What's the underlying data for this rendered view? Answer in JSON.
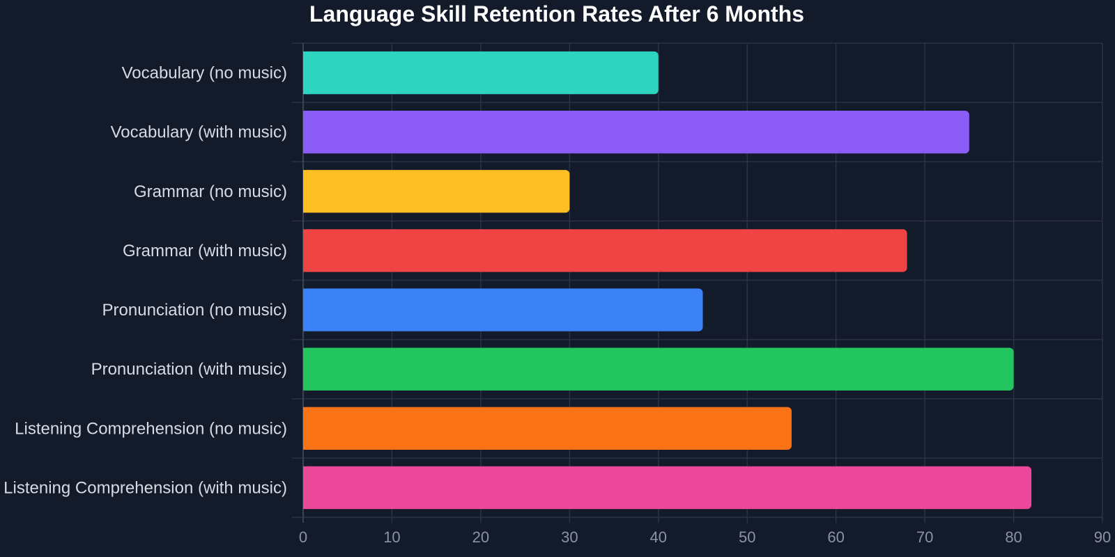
{
  "chart_data": {
    "type": "bar",
    "orientation": "horizontal",
    "title": "Language Skill Retention Rates After 6 Months",
    "xlabel": "",
    "ylabel": "",
    "categories": [
      "Vocabulary (no music)",
      "Vocabulary (with music)",
      "Grammar (no music)",
      "Grammar (with music)",
      "Pronunciation (no music)",
      "Pronunciation (with music)",
      "Listening Comprehension (no music)",
      "Listening Comprehension (with music)"
    ],
    "values": [
      40,
      75,
      30,
      68,
      45,
      80,
      55,
      82
    ],
    "colors": [
      "#2dd4bf",
      "#8b5cf6",
      "#fbbf24",
      "#ef4444",
      "#3b82f6",
      "#22c55e",
      "#f97316",
      "#ec4899"
    ],
    "xlim": [
      0,
      90
    ],
    "xticks": [
      0,
      10,
      20,
      30,
      40,
      50,
      60,
      70,
      80,
      90
    ],
    "grid": true,
    "legend": "none",
    "background": "#131a2a",
    "grid_color": "#2a3244"
  }
}
